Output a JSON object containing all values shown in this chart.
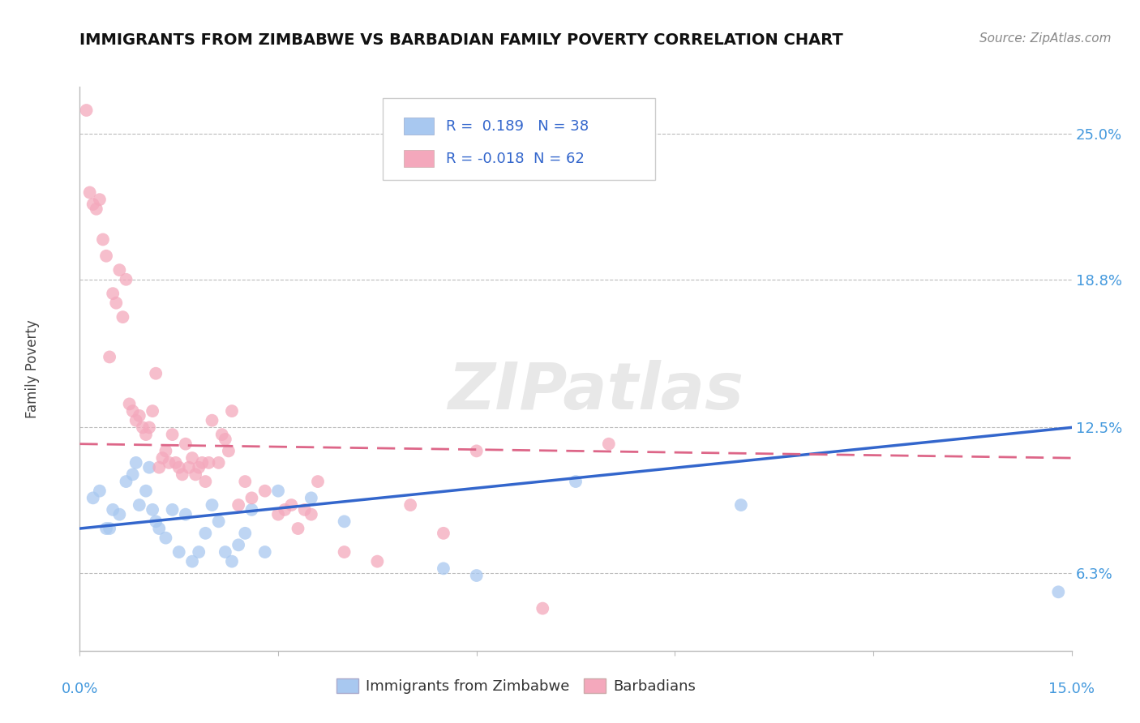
{
  "title": "IMMIGRANTS FROM ZIMBABWE VS BARBADIAN FAMILY POVERTY CORRELATION CHART",
  "source": "Source: ZipAtlas.com",
  "ylabel": "Family Poverty",
  "y_ticks": [
    6.3,
    12.5,
    18.8,
    25.0
  ],
  "y_tick_labels": [
    "6.3%",
    "12.5%",
    "18.8%",
    "25.0%"
  ],
  "xmin": 0.0,
  "xmax": 15.0,
  "ymin": 3.0,
  "ymax": 27.0,
  "blue_R": 0.189,
  "blue_N": 38,
  "pink_R": -0.018,
  "pink_N": 62,
  "blue_color": "#A8C8F0",
  "pink_color": "#F4A8BC",
  "blue_line_color": "#3366CC",
  "pink_line_color": "#DD6688",
  "watermark": "ZIPatlas",
  "blue_line_x0": 0.0,
  "blue_line_y0": 8.2,
  "blue_line_x1": 15.0,
  "blue_line_y1": 12.5,
  "pink_line_x0": 0.0,
  "pink_line_y0": 11.8,
  "pink_line_x1": 15.0,
  "pink_line_y1": 11.2,
  "blue_dots_x": [
    0.2,
    0.3,
    0.4,
    0.5,
    0.6,
    0.7,
    0.8,
    0.85,
    0.9,
    1.0,
    1.05,
    1.1,
    1.15,
    1.2,
    1.3,
    1.4,
    1.5,
    1.6,
    1.7,
    1.8,
    1.9,
    2.0,
    2.1,
    2.2,
    2.3,
    2.4,
    2.5,
    2.6,
    2.8,
    3.0,
    3.5,
    4.0,
    5.5,
    6.0,
    7.5,
    10.0,
    14.8,
    0.45
  ],
  "blue_dots_y": [
    9.5,
    9.8,
    8.2,
    9.0,
    8.8,
    10.2,
    10.5,
    11.0,
    9.2,
    9.8,
    10.8,
    9.0,
    8.5,
    8.2,
    7.8,
    9.0,
    7.2,
    8.8,
    6.8,
    7.2,
    8.0,
    9.2,
    8.5,
    7.2,
    6.8,
    7.5,
    8.0,
    9.0,
    7.2,
    9.8,
    9.5,
    8.5,
    6.5,
    6.2,
    10.2,
    9.2,
    5.5,
    8.2
  ],
  "pink_dots_x": [
    0.1,
    0.15,
    0.2,
    0.25,
    0.3,
    0.35,
    0.4,
    0.5,
    0.55,
    0.6,
    0.7,
    0.75,
    0.8,
    0.85,
    0.9,
    0.95,
    1.0,
    1.05,
    1.1,
    1.15,
    1.2,
    1.25,
    1.3,
    1.35,
    1.4,
    1.45,
    1.5,
    1.55,
    1.6,
    1.65,
    1.7,
    1.75,
    1.8,
    1.85,
    1.9,
    2.0,
    2.1,
    2.15,
    2.2,
    2.25,
    2.3,
    2.4,
    2.5,
    2.6,
    2.8,
    3.0,
    3.1,
    3.2,
    3.3,
    3.4,
    3.5,
    3.6,
    4.0,
    4.5,
    5.0,
    5.5,
    6.0,
    7.0,
    8.0,
    0.45,
    0.65,
    1.95
  ],
  "pink_dots_y": [
    26.0,
    22.5,
    22.0,
    21.8,
    22.2,
    20.5,
    19.8,
    18.2,
    17.8,
    19.2,
    18.8,
    13.5,
    13.2,
    12.8,
    13.0,
    12.5,
    12.2,
    12.5,
    13.2,
    14.8,
    10.8,
    11.2,
    11.5,
    11.0,
    12.2,
    11.0,
    10.8,
    10.5,
    11.8,
    10.8,
    11.2,
    10.5,
    10.8,
    11.0,
    10.2,
    12.8,
    11.0,
    12.2,
    12.0,
    11.5,
    13.2,
    9.2,
    10.2,
    9.5,
    9.8,
    8.8,
    9.0,
    9.2,
    8.2,
    9.0,
    8.8,
    10.2,
    7.2,
    6.8,
    9.2,
    8.0,
    11.5,
    4.8,
    11.8,
    15.5,
    17.2,
    11.0
  ]
}
